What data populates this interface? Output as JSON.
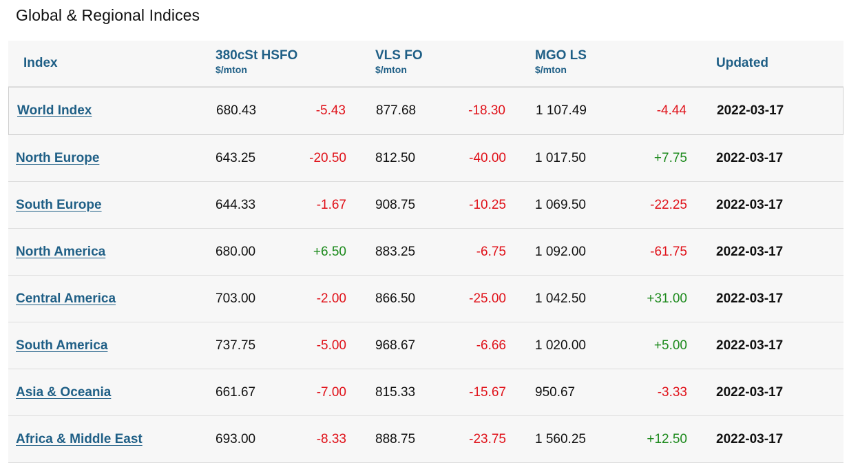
{
  "page": {
    "title": "Global & Regional Indices"
  },
  "table": {
    "headers": {
      "index": "Index",
      "hsfo": "380cSt HSFO",
      "hsfo_unit": "$/mton",
      "vls": "VLS FO",
      "vls_unit": "$/mton",
      "mgo": "MGO LS",
      "mgo_unit": "$/mton",
      "updated": "Updated"
    },
    "rows": [
      {
        "name": "World Index",
        "hsfo": "680.43",
        "hsfo_chg": "-5.43",
        "vls": "877.68",
        "vls_chg": "-18.30",
        "mgo": "1 107.49",
        "mgo_chg": "-4.44",
        "updated": "2022-03-17"
      },
      {
        "name": "North Europe",
        "hsfo": "643.25",
        "hsfo_chg": "-20.50",
        "vls": "812.50",
        "vls_chg": "-40.00",
        "mgo": "1 017.50",
        "mgo_chg": "+7.75",
        "updated": "2022-03-17"
      },
      {
        "name": "South Europe",
        "hsfo": "644.33",
        "hsfo_chg": "-1.67",
        "vls": "908.75",
        "vls_chg": "-10.25",
        "mgo": "1 069.50",
        "mgo_chg": "-22.25",
        "updated": "2022-03-17"
      },
      {
        "name": "North America",
        "hsfo": "680.00",
        "hsfo_chg": "+6.50",
        "vls": "883.25",
        "vls_chg": "-6.75",
        "mgo": "1 092.00",
        "mgo_chg": "-61.75",
        "updated": "2022-03-17"
      },
      {
        "name": "Central America",
        "hsfo": "703.00",
        "hsfo_chg": "-2.00",
        "vls": "866.50",
        "vls_chg": "-25.00",
        "mgo": "1 042.50",
        "mgo_chg": "+31.00",
        "updated": "2022-03-17"
      },
      {
        "name": "South America",
        "hsfo": "737.75",
        "hsfo_chg": "-5.00",
        "vls": "968.67",
        "vls_chg": "-6.66",
        "mgo": "1 020.00",
        "mgo_chg": "+5.00",
        "updated": "2022-03-17"
      },
      {
        "name": "Asia & Oceania",
        "hsfo": "661.67",
        "hsfo_chg": "-7.00",
        "vls": "815.33",
        "vls_chg": "-15.67",
        "mgo": "950.67",
        "mgo_chg": "-3.33",
        "updated": "2022-03-17"
      },
      {
        "name": "Africa & Middle East",
        "hsfo": "693.00",
        "hsfo_chg": "-8.33",
        "vls": "888.75",
        "vls_chg": "-23.75",
        "mgo": "1 560.25",
        "mgo_chg": "+12.50",
        "updated": "2022-03-17"
      }
    ]
  },
  "colors": {
    "link": "#1f5f86",
    "negative": "#e0121a",
    "positive": "#1d8a1d"
  }
}
